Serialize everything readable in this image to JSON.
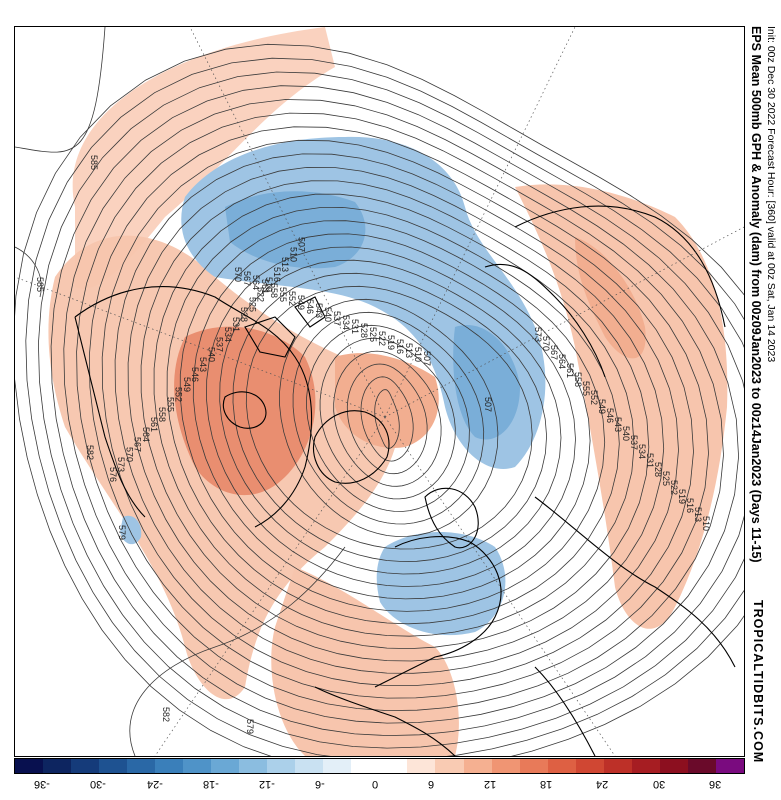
{
  "title": "EPS Mean 500mb GPH & Anomaly (dam) from 00z09Jan2023 to 00z14Jan2023 (Days 11-15)",
  "subtitle": "Init: 00z Dec 30 2022   Forecast Hour: [360]   valid at 00z Sat, Jan 14 2023",
  "brand": "TROPICALTIDBITS.COM",
  "colorbar": {
    "labels": [
      "-36",
      "-30",
      "-24",
      "-18",
      "-12",
      "-6",
      "0",
      "6",
      "12",
      "18",
      "24",
      "30",
      "36"
    ],
    "colors": [
      "#08104f",
      "#0d2560",
      "#153b7a",
      "#1e5291",
      "#2a68a6",
      "#3a7fba",
      "#4f93c8",
      "#6aa8d5",
      "#8bbde0",
      "#abd0ea",
      "#c9e1f2",
      "#e3eff8",
      "#ffffff",
      "#ffffff",
      "#fde5d8",
      "#f9cbb3",
      "#f5b091",
      "#f09573",
      "#e87a59",
      "#de6043",
      "#d04733",
      "#bd3028",
      "#a61d22",
      "#8c0f1f",
      "#6a0a2a",
      "#7a0b7f"
    ]
  },
  "contour_labels": [
    "585",
    "585",
    "582",
    "582",
    "579",
    "579",
    "576",
    "573",
    "570",
    "567",
    "564",
    "561",
    "558",
    "555",
    "552",
    "549",
    "546",
    "543",
    "540",
    "537",
    "534",
    "531",
    "528",
    "525",
    "522",
    "519",
    "516",
    "513",
    "510",
    "507",
    "570",
    "567",
    "564",
    "561",
    "558",
    "555",
    "552",
    "549",
    "546",
    "543",
    "540",
    "537",
    "534",
    "531",
    "528",
    "525",
    "522",
    "519",
    "516",
    "513",
    "510",
    "507",
    "573",
    "570",
    "567",
    "564",
    "561",
    "558",
    "555",
    "552",
    "549",
    "546",
    "543",
    "540",
    "537",
    "534",
    "531",
    "528",
    "525",
    "522",
    "519",
    "516",
    "513",
    "510"
  ],
  "map": {
    "center_height_dam": "507",
    "anomaly_positive_color": "#f4b9a0",
    "anomaly_strong_color": "#e88465",
    "anomaly_negative_color": "#7fb2db",
    "anomaly_strong_negative_color": "#5e9acb"
  }
}
